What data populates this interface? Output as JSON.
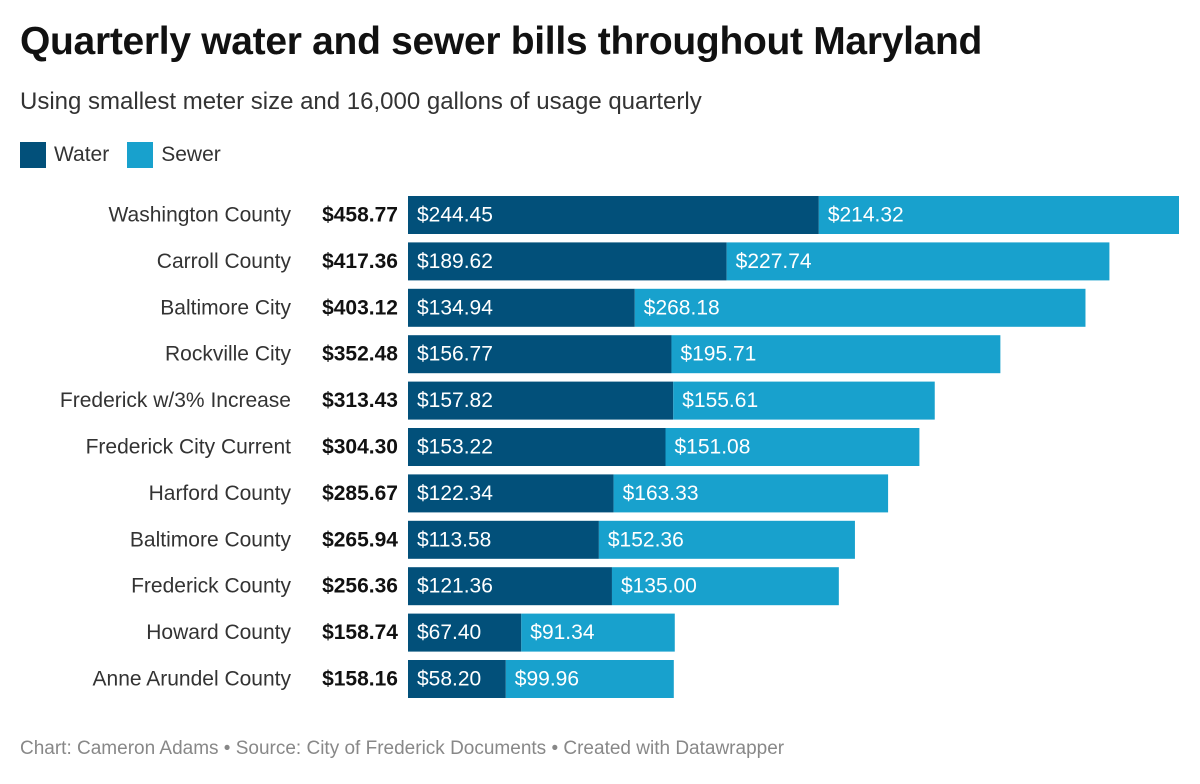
{
  "title": "Quarterly water and sewer bills throughout Maryland",
  "subtitle": "Using smallest meter size and 16,000 gallons of usage quarterly",
  "legend": {
    "water_label": "Water",
    "sewer_label": "Sewer"
  },
  "colors": {
    "water": "#02507a",
    "sewer": "#18a1cd"
  },
  "footer": "Chart: Cameron Adams • Source: City of Frederick Documents • Created with Datawrapper",
  "chart_data": {
    "type": "bar",
    "orientation": "horizontal",
    "stacked": true,
    "title": "Quarterly water and sewer bills throughout Maryland",
    "subtitle": "Using smallest meter size and 16,000 gallons of usage quarterly",
    "categories": [
      "Washington County",
      "Carroll County",
      "Baltimore City",
      "Rockville City",
      "Frederick w/3% Increase",
      "Frederick City Current",
      "Harford County",
      "Baltimore County",
      "Frederick County",
      "Howard County",
      "Anne Arundel County"
    ],
    "totals": [
      458.77,
      417.36,
      403.12,
      352.48,
      313.43,
      304.3,
      285.67,
      265.94,
      256.36,
      158.74,
      158.16
    ],
    "series": [
      {
        "name": "Water",
        "values": [
          244.45,
          189.62,
          134.94,
          156.77,
          157.82,
          153.22,
          122.34,
          113.58,
          121.36,
          67.4,
          58.2
        ]
      },
      {
        "name": "Sewer",
        "values": [
          214.32,
          227.74,
          268.18,
          195.71,
          155.61,
          151.08,
          163.33,
          152.36,
          135.0,
          91.34,
          99.96
        ]
      }
    ],
    "xlim": [
      0,
      458.77
    ],
    "grid": false,
    "legend_position": "top-left"
  }
}
